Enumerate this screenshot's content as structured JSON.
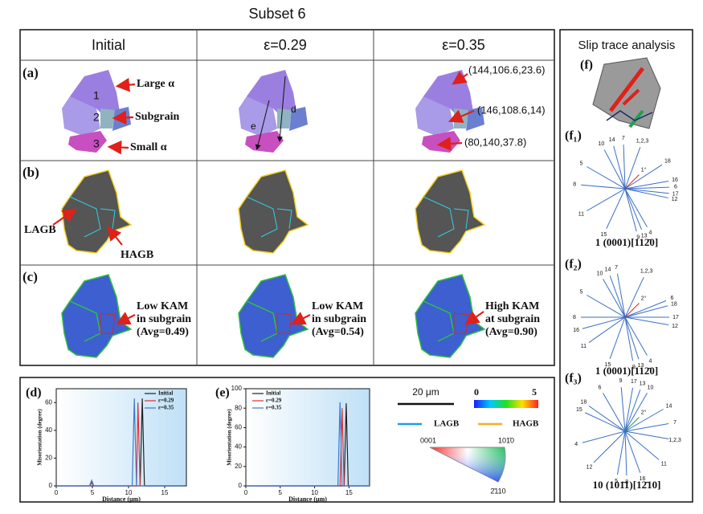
{
  "title": "Subset 6",
  "columns": [
    "Initial",
    "ε=0.29",
    "ε=0.35"
  ],
  "rows": [
    "(a)",
    "(b)",
    "(c)"
  ],
  "row_a": {
    "grain_labels": [
      "1",
      "2",
      "3"
    ],
    "annotations": [
      "Large α",
      "Subgrain",
      "Small α"
    ],
    "trace_labels": [
      "e",
      "d"
    ],
    "euler_angles": [
      "(144,106.6,23.6)",
      "(146,108.6,14)",
      "(80,140,37.8)"
    ]
  },
  "row_b": {
    "annotations": [
      "LAGB",
      "HAGB"
    ]
  },
  "row_c": {
    "annotations": [
      [
        "Low KAM",
        "in subgrain",
        "(Avg=0.49)"
      ],
      [
        "Low KAM",
        "in subgrain",
        "(Avg=0.54)"
      ],
      [
        "High KAM",
        "at subgrain",
        "(Avg=0.90)"
      ]
    ]
  },
  "slip_trace": {
    "title": "Slip trace analysis",
    "panel": "(f)",
    "nets": [
      {
        "label": "(f₁)",
        "traces": [
          "1,2,3",
          "7",
          "14",
          "10",
          "5",
          "8",
          "11",
          "15",
          "9",
          "13",
          "4",
          "12",
          "17",
          "6",
          "16",
          "18",
          "1°"
        ],
        "highlight_color": "#e0201a",
        "caption": "1 (0001)[112̄0]"
      },
      {
        "label": "(f₂)",
        "traces": [
          "1,2,3",
          "7",
          "14",
          "10",
          "5",
          "8",
          "16",
          "11",
          "15",
          "9",
          "13",
          "4",
          "12",
          "17",
          "18",
          "6",
          "2°"
        ],
        "highlight_color": "#e0201a",
        "caption": "1 (0001)[112̄0]"
      },
      {
        "label": "(f₃)",
        "traces": [
          "17",
          "13",
          "10",
          "9",
          "6",
          "18",
          "15",
          "4",
          "12",
          "5",
          "8",
          "16",
          "11",
          "1,2,3",
          "7",
          "14",
          "2°"
        ],
        "highlight_color": "#22a04a",
        "caption": "10 (101̄1)[12̄10]"
      }
    ]
  },
  "legend": {
    "scale_bar": "20 μm",
    "kam_min": "0",
    "kam_max": "5",
    "boundaries": [
      "LAGB",
      "HAGB"
    ],
    "ipf_corners": [
      "0001",
      "101̄0",
      "2̄110"
    ]
  },
  "chart_data": [
    {
      "type": "line",
      "panel": "(d)",
      "xlabel": "Distance (μm)",
      "ylabel": "Misorientation (degree)",
      "x": [
        0,
        4.6,
        4.9,
        5.2,
        10.5,
        10.8,
        11.1,
        11.3,
        11.6,
        11.9,
        12.2,
        17.5
      ],
      "series": [
        {
          "name": "Initial",
          "color": "#222222",
          "values": [
            0,
            0,
            3,
            0,
            0,
            0,
            0,
            0,
            0,
            63,
            0,
            0
          ]
        },
        {
          "name": "ε=0.29",
          "color": "#e03030",
          "values": [
            0,
            0,
            2,
            0,
            0,
            0,
            0,
            60,
            0,
            0,
            0,
            0
          ]
        },
        {
          "name": "ε=0.35",
          "color": "#3a7ad0",
          "values": [
            0,
            0,
            4,
            0,
            0,
            63,
            0,
            0,
            0,
            0,
            0,
            0
          ]
        }
      ],
      "xlim": [
        0,
        18
      ],
      "xticks": [
        0,
        5,
        10,
        15
      ],
      "ylim": [
        0,
        70
      ],
      "yticks": [
        0,
        20,
        40,
        60
      ],
      "legend": "upper right"
    },
    {
      "type": "line",
      "panel": "(e)",
      "xlabel": "Distance (μm)",
      "ylabel": "Misorientation (degree)",
      "x": [
        0,
        13.4,
        13.7,
        14.0,
        14.3,
        14.6,
        14.9,
        18
      ],
      "series": [
        {
          "name": "Initial",
          "color": "#222222",
          "values": [
            0,
            0,
            0,
            0,
            0,
            85,
            0,
            0
          ]
        },
        {
          "name": "ε=0.29",
          "color": "#e03030",
          "values": [
            0,
            0,
            0,
            80,
            0,
            0,
            0,
            0
          ]
        },
        {
          "name": "ε=0.35",
          "color": "#3a7ad0",
          "values": [
            0,
            0,
            86,
            0,
            0,
            0,
            0,
            0
          ]
        }
      ],
      "xlim": [
        0,
        18
      ],
      "xticks": [
        0,
        5,
        10,
        15
      ],
      "ylim": [
        0,
        100
      ],
      "yticks": [
        0,
        20,
        40,
        60,
        80,
        100
      ],
      "legend": "upper left"
    }
  ]
}
